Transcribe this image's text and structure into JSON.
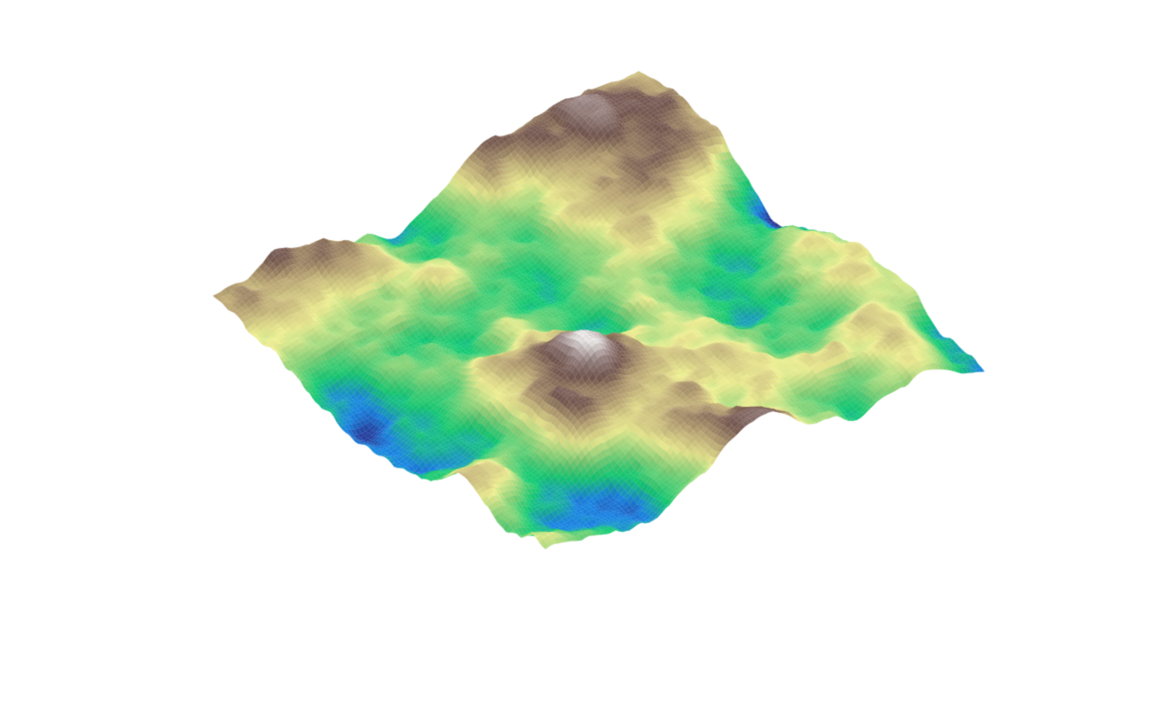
{
  "scene": {
    "type": "3d-surface-terrain",
    "background": "#ffffff",
    "colormap": "terrain",
    "colormap_stops": [
      "#2b2b8f",
      "#1b8cf0",
      "#17d67a",
      "#8be07f",
      "#fcfc9a",
      "#c8b27d",
      "#7d5e56",
      "#a89290",
      "#ffffff"
    ],
    "axes_visible": false,
    "grid_lines": true
  }
}
